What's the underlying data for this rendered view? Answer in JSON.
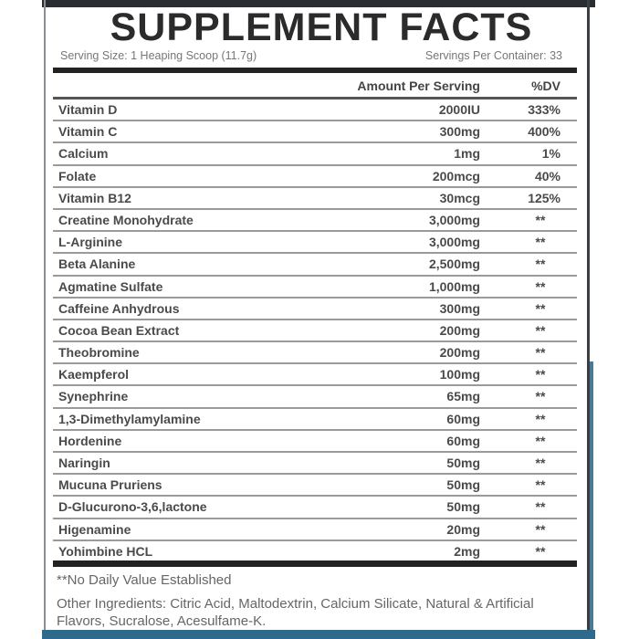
{
  "title": "SUPPLEMENT FACTS",
  "serving_size": "Serving Size: 1 Heaping Scoop (11.7g)",
  "servings_per_container": "Servings Per Container: 33",
  "header": {
    "amount": "Amount Per Serving",
    "dv": "%DV"
  },
  "rows": [
    {
      "name": "Vitamin D",
      "amount": "2000IU",
      "dv": "333%"
    },
    {
      "name": "Vitamin C",
      "amount": "300mg",
      "dv": "400%"
    },
    {
      "name": "Calcium",
      "amount": "1mg",
      "dv": "1%"
    },
    {
      "name": "Folate",
      "amount": "200mcg",
      "dv": "40%"
    },
    {
      "name": "Vitamin B12",
      "amount": "30mcg",
      "dv": "125%"
    },
    {
      "name": "Creatine Monohydrate",
      "amount": "3,000mg",
      "dv": "**"
    },
    {
      "name": "L-Arginine",
      "amount": "3,000mg",
      "dv": "**"
    },
    {
      "name": "Beta Alanine",
      "amount": "2,500mg",
      "dv": "**"
    },
    {
      "name": "Agmatine Sulfate",
      "amount": "1,000mg",
      "dv": "**"
    },
    {
      "name": "Caffeine Anhydrous",
      "amount": "300mg",
      "dv": "**"
    },
    {
      "name": "Cocoa Bean Extract",
      "amount": "200mg",
      "dv": "**"
    },
    {
      "name": "Theobromine",
      "amount": "200mg",
      "dv": "**"
    },
    {
      "name": "Kaempferol",
      "amount": "100mg",
      "dv": "**"
    },
    {
      "name": "Synephrine",
      "amount": "65mg",
      "dv": "**"
    },
    {
      "name": "1,3-Dimethylamylamine",
      "amount": "60mg",
      "dv": "**"
    },
    {
      "name": "Hordenine",
      "amount": "60mg",
      "dv": "**"
    },
    {
      "name": "Naringin",
      "amount": "50mg",
      "dv": "**"
    },
    {
      "name": "Mucuna Pruriens",
      "amount": "50mg",
      "dv": "**"
    },
    {
      "name": "D-Glucurono-3,6,lactone",
      "amount": "50mg",
      "dv": "**"
    },
    {
      "name": "Higenamine",
      "amount": "20mg",
      "dv": "**"
    },
    {
      "name": "Yohimbine HCL",
      "amount": "2mg",
      "dv": "**"
    }
  ],
  "footnote": "**No Daily Value Established",
  "other_ingredients": "Other Ingredients: Citric Acid, Maltodextrin, Calcium Silicate, Natural & Artificial Flavors, Sucralose, Acesulfame-K."
}
